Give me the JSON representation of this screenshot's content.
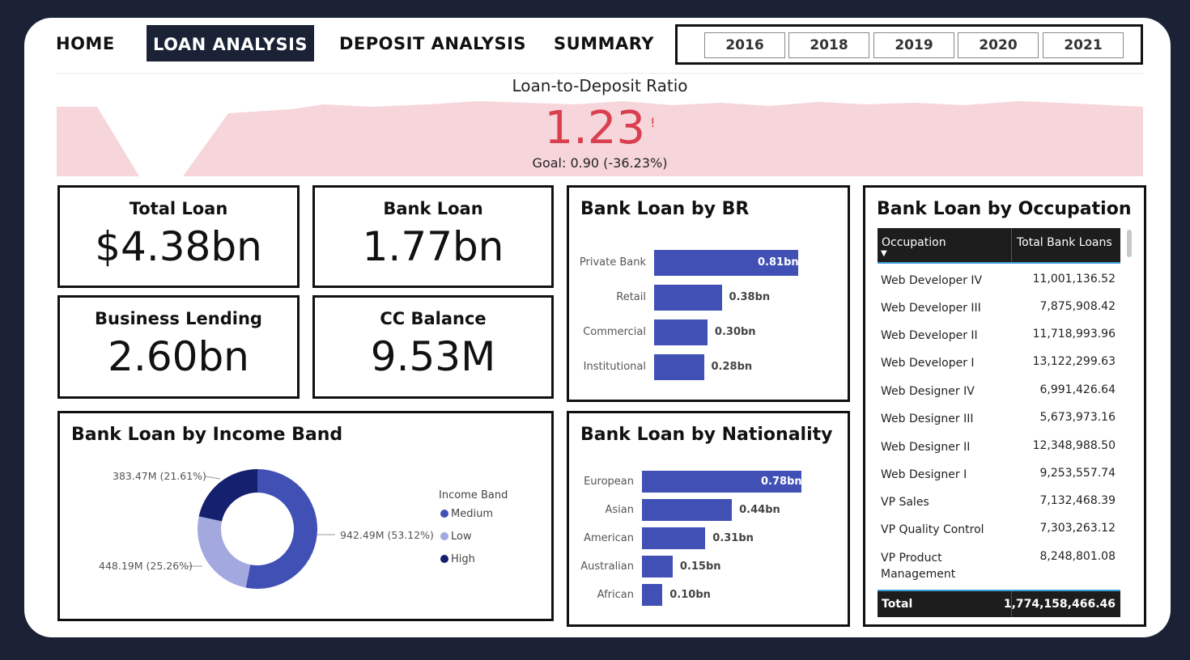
{
  "nav": {
    "items": [
      "HOME",
      "LOAN ANALYSIS",
      "DEPOSIT ANALYSIS",
      "SUMMARY"
    ],
    "active": "LOAN ANALYSIS",
    "years": [
      "2016",
      "2018",
      "2019",
      "2020",
      "2021"
    ]
  },
  "ratio": {
    "title": "Loan-to-Deposit Ratio",
    "value": "1.23",
    "alert": "!",
    "goal": "Goal: 0.90 (-36.23%)",
    "trend_color": "#f6d6da"
  },
  "kpis": {
    "total_loan": {
      "label": "Total Loan",
      "value": "$4.38bn"
    },
    "bank_loan": {
      "label": "Bank Loan",
      "value": "1.77bn"
    },
    "business_lending": {
      "label": "Business Lending",
      "value": "2.60bn"
    },
    "cc_balance": {
      "label": "CC Balance",
      "value": "9.53M"
    }
  },
  "br_chart": {
    "title": "Bank Loan by BR",
    "bar_color": "#4150b5"
  },
  "nationality_chart": {
    "title": "Bank Loan by Nationality"
  },
  "income_chart": {
    "title": "Bank Loan by Income Band",
    "legend_title": "Income Band"
  },
  "occupation_table": {
    "title": "Bank Loan by Occupation",
    "col1": "Occupation",
    "col2": "Total Bank Loans",
    "rows": [
      {
        "occ": "Web Developer IV",
        "val": "11,001,136.52"
      },
      {
        "occ": "Web Developer III",
        "val": "7,875,908.42"
      },
      {
        "occ": "Web Developer II",
        "val": "11,718,993.96"
      },
      {
        "occ": "Web Developer I",
        "val": "13,122,299.63"
      },
      {
        "occ": "Web Designer IV",
        "val": "6,991,426.64"
      },
      {
        "occ": "Web Designer III",
        "val": "5,673,973.16"
      },
      {
        "occ": "Web Designer II",
        "val": "12,348,988.50"
      },
      {
        "occ": "Web Designer I",
        "val": "9,253,557.74"
      },
      {
        "occ": "VP Sales",
        "val": "7,132,468.39"
      },
      {
        "occ": "VP Quality Control",
        "val": "7,303,263.12"
      },
      {
        "occ": "VP Product Management",
        "val": "8,248,801.08"
      }
    ],
    "total_label": "Total",
    "total_value": "1,774,158,466.46"
  },
  "chart_data": [
    {
      "type": "bar",
      "title": "Bank Loan by BR",
      "categories": [
        "Private Bank",
        "Retail",
        "Commercial",
        "Institutional"
      ],
      "values": [
        0.81,
        0.38,
        0.3,
        0.28
      ],
      "value_labels": [
        "0.81bn",
        "0.38bn",
        "0.30bn",
        "0.28bn"
      ],
      "orientation": "horizontal",
      "unit": "bn"
    },
    {
      "type": "bar",
      "title": "Bank Loan by Nationality",
      "categories": [
        "European",
        "Asian",
        "American",
        "Australian",
        "African"
      ],
      "values": [
        0.78,
        0.44,
        0.31,
        0.15,
        0.1
      ],
      "value_labels": [
        "0.78bn",
        "0.44bn",
        "0.31bn",
        "0.15bn",
        "0.10bn"
      ],
      "orientation": "horizontal",
      "unit": "bn"
    },
    {
      "type": "pie",
      "title": "Bank Loan by Income Band",
      "donut": true,
      "legend_title": "Income Band",
      "series": [
        {
          "name": "Medium",
          "value": 942.49,
          "label": "942.49M (53.12%)",
          "color": "#4150b5"
        },
        {
          "name": "Low",
          "value": 448.19,
          "label": "448.19M (25.26%)",
          "color": "#a3a8de"
        },
        {
          "name": "High",
          "value": 383.47,
          "label": "383.47M (21.61%)",
          "color": "#15206e"
        }
      ]
    }
  ]
}
